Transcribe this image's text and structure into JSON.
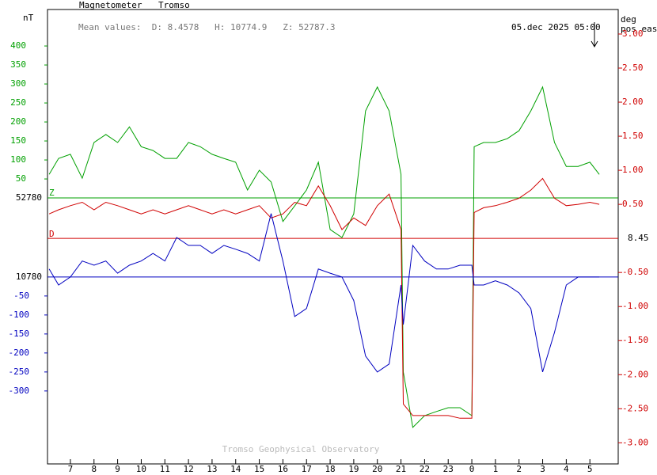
{
  "chart_data": {
    "type": "line",
    "title": "Magnetometer",
    "station": "Tromso",
    "mean_values": "Mean values:  D: 8.4578   H: 10774.9   Z: 52787.3",
    "timestamp": "05.dec 2025 05:00",
    "footer": "Tromso Geophysical Observatory",
    "left_unit": "nT",
    "right_unit": "deg",
    "right_unit_note": "pos east",
    "z_baseline": 52780,
    "h_baseline": 10780,
    "d_baseline": {
      "value": 8.45,
      "label": "8.45"
    },
    "x": [
      6.1,
      6.5,
      7,
      7.5,
      8,
      8.5,
      9,
      9.5,
      10,
      10.5,
      11,
      11.5,
      12,
      12.5,
      13,
      13.5,
      14,
      14.5,
      15,
      15.5,
      16,
      16.5,
      17,
      17.5,
      18,
      18.5,
      19,
      19.5,
      20,
      20.5,
      21,
      21.1,
      21.5,
      22,
      22.5,
      23,
      23.5,
      24,
      24.1,
      24.5,
      25,
      25.5,
      26,
      26.5,
      27,
      27.5,
      28,
      28.5,
      29,
      29.4
    ],
    "series": [
      {
        "name": "Z",
        "color": "#00a000",
        "axis": "z",
        "values": [
          62,
          104,
          115,
          52,
          146,
          167,
          146,
          187,
          135,
          125,
          104,
          104,
          146,
          135,
          115,
          104,
          94,
          21,
          73,
          42,
          -62,
          -21,
          21,
          94,
          -83,
          -104,
          -42,
          229,
          292,
          229,
          62,
          -458,
          -604,
          -573,
          -562,
          -552,
          -552,
          -573,
          135,
          146,
          146,
          156,
          177,
          229,
          292,
          146,
          83,
          83,
          94,
          62
        ]
      },
      {
        "name": "D",
        "color": "#d00000",
        "axis": "y2",
        "values": [
          0.36,
          0.42,
          0.48,
          0.53,
          0.42,
          0.53,
          0.48,
          0.42,
          0.36,
          0.42,
          0.36,
          0.42,
          0.48,
          0.42,
          0.36,
          0.42,
          0.36,
          0.42,
          0.48,
          0.3,
          0.36,
          0.53,
          0.48,
          0.77,
          0.48,
          0.13,
          0.3,
          0.19,
          0.48,
          0.65,
          0.13,
          -2.43,
          -2.6,
          -2.6,
          -2.6,
          -2.6,
          -2.64,
          -2.64,
          0.38,
          0.45,
          0.48,
          0.53,
          0.59,
          0.71,
          0.88,
          0.59,
          0.48,
          0.5,
          0.53,
          0.5
        ]
      },
      {
        "color": "#0000c0",
        "axis": "h",
        "values": [
          21,
          -21,
          0,
          42,
          31,
          42,
          10,
          31,
          42,
          62,
          42,
          104,
          83,
          83,
          62,
          83,
          73,
          62,
          42,
          167,
          42,
          -104,
          -83,
          21,
          10,
          0,
          -62,
          -208,
          -250,
          -229,
          -21,
          -125,
          83,
          42,
          21,
          21,
          31,
          31,
          -21,
          -21,
          -10,
          -21,
          -42,
          -83,
          -250,
          -146,
          -21,
          0,
          0,
          0
        ]
      }
    ],
    "xlim": [
      6.03,
      30.2
    ],
    "xticks": [
      7,
      8,
      9,
      10,
      11,
      12,
      13,
      14,
      15,
      16,
      17,
      18,
      19,
      20,
      21,
      22,
      23,
      {
        "value": 24,
        "label": "0"
      },
      {
        "value": 25,
        "label": "1"
      },
      {
        "value": 26,
        "label": "2"
      },
      {
        "value": 27,
        "label": "3"
      },
      {
        "value": 28,
        "label": "4"
      },
      {
        "value": 29,
        "label": "5"
      }
    ],
    "zlim": [
      -700,
      496
    ],
    "zticks": [
      50,
      100,
      150,
      200,
      250,
      300,
      350,
      400
    ],
    "hlim": [
      -492,
      704
    ],
    "hticks": [
      -50,
      -100,
      -150,
      -200,
      -250,
      -300
    ],
    "y2lim": [
      -3.31,
      3.36
    ],
    "y2ticks": [
      {
        "value": 3,
        "label": "3.00"
      },
      {
        "value": 2.5,
        "label": "2.50"
      },
      {
        "value": 2,
        "label": "2.00"
      },
      {
        "value": 1.5,
        "label": "1.50"
      },
      {
        "value": 1,
        "label": "1.00"
      },
      {
        "value": 0.5,
        "label": "0.50"
      },
      {
        "value": -0.5,
        "label": "-0.50"
      },
      {
        "value": -1,
        "label": "-1.00"
      },
      {
        "value": -1.5,
        "label": "-1.50"
      },
      {
        "value": -2,
        "label": "-2.00"
      },
      {
        "value": -2.5,
        "label": "-2.50"
      },
      {
        "value": -3,
        "label": "-3.00"
      }
    ]
  }
}
